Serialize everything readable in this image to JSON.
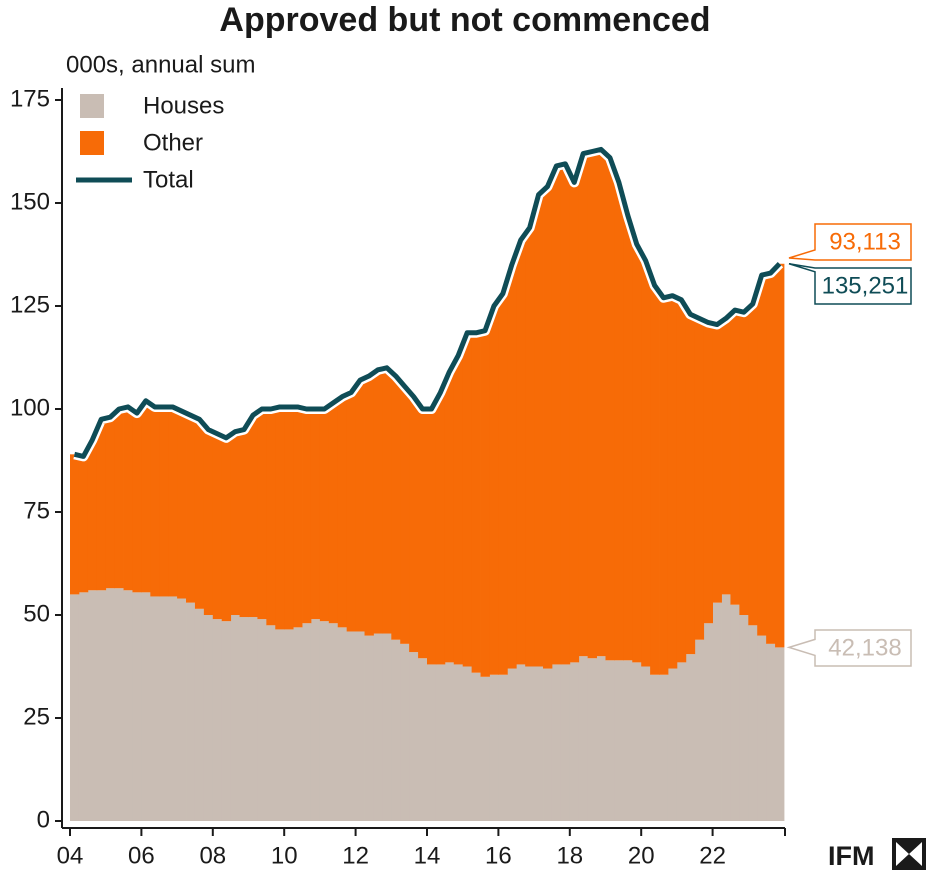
{
  "chart_data": {
    "type": "stacked-step-area",
    "title": "Approved but not commenced",
    "subtitle": "000s, annual sum",
    "logo": "IFM",
    "x": [
      2004,
      2004.25,
      2004.5,
      2004.75,
      2005,
      2005.25,
      2005.5,
      2005.75,
      2006,
      2006.25,
      2006.5,
      2006.75,
      2007,
      2007.25,
      2007.5,
      2007.75,
      2008,
      2008.25,
      2008.5,
      2008.75,
      2009,
      2009.25,
      2009.5,
      2009.75,
      2010,
      2010.25,
      2010.5,
      2010.75,
      2011,
      2011.25,
      2011.5,
      2011.75,
      2012,
      2012.25,
      2012.5,
      2012.75,
      2013,
      2013.25,
      2013.5,
      2013.75,
      2014,
      2014.25,
      2014.5,
      2014.75,
      2015,
      2015.25,
      2015.5,
      2015.75,
      2016,
      2016.25,
      2016.5,
      2016.75,
      2017,
      2017.25,
      2017.5,
      2017.75,
      2018,
      2018.25,
      2018.5,
      2018.75,
      2019,
      2019.25,
      2019.5,
      2019.75,
      2020,
      2020.25,
      2020.5,
      2020.75,
      2021,
      2021.25,
      2021.5,
      2021.75,
      2022,
      2022.25,
      2022.5,
      2022.75,
      2023,
      2023.25,
      2023.5,
      2023.75
    ],
    "series": [
      {
        "name": "Houses",
        "color": "#c9bdb4",
        "stack": true,
        "values": [
          55,
          55.5,
          56,
          56,
          56.5,
          56.5,
          56,
          55.5,
          55.5,
          54.5,
          54.5,
          54.5,
          54,
          53,
          51.5,
          50,
          49,
          48.5,
          50,
          49.5,
          49.5,
          49,
          47.5,
          46.5,
          46.5,
          47,
          48,
          49,
          48.5,
          48,
          47,
          46,
          46,
          45,
          45.5,
          45.5,
          44,
          43,
          41,
          39.5,
          38,
          38,
          38.5,
          38,
          37.5,
          36,
          35,
          35.5,
          35.5,
          37,
          38,
          37.5,
          37.5,
          37,
          38,
          38,
          38.5,
          40,
          39.5,
          40,
          39,
          39,
          39,
          38.5,
          37.5,
          35.5,
          35.5,
          37,
          38.5,
          40.5,
          44,
          48,
          53,
          55,
          52.5,
          50,
          47.5,
          45,
          43,
          42.138
        ],
        "value_labels": [
          null,
          null,
          null,
          null,
          null,
          null,
          null,
          null,
          null,
          null,
          null,
          null,
          null,
          null,
          null,
          null,
          null,
          null,
          null,
          null,
          null,
          null,
          null,
          null,
          null,
          null,
          null,
          null,
          null,
          null,
          null,
          null,
          null,
          null,
          null,
          null,
          null,
          null,
          null,
          null,
          null,
          null,
          null,
          null,
          null,
          null,
          null,
          null,
          null,
          null,
          null,
          null,
          null,
          null,
          null,
          null,
          null,
          null,
          null,
          null,
          null,
          null,
          null,
          null,
          null,
          null,
          null,
          null,
          null,
          null,
          null,
          null,
          null,
          null,
          null,
          null,
          null,
          null,
          null,
          "42,138"
        ]
      },
      {
        "name": "Other",
        "color": "#f76b07",
        "stack": true,
        "values": [
          34,
          33,
          36.5,
          41.5,
          41.5,
          43.5,
          44.5,
          43.5,
          46.5,
          46,
          46,
          46,
          45.5,
          45.5,
          46,
          45,
          45,
          44.5,
          44.5,
          45.5,
          49,
          51,
          52.5,
          54,
          54,
          53.5,
          52,
          51,
          51.5,
          53.5,
          56,
          58,
          61,
          63,
          64,
          64.5,
          64,
          62.5,
          62,
          60.5,
          62,
          66,
          70.5,
          75,
          81,
          82.5,
          84,
          89.5,
          92.5,
          98,
          103,
          106.5,
          114.5,
          117,
          121,
          121.5,
          116.5,
          122,
          123,
          123,
          122,
          116,
          108,
          101.5,
          98.5,
          94.5,
          91.5,
          90.5,
          88,
          82.5,
          78,
          73,
          67.5,
          67,
          71.5,
          73.5,
          78,
          87.5,
          90,
          93.113
        ],
        "value_labels": [
          null,
          null,
          null,
          null,
          null,
          null,
          null,
          null,
          null,
          null,
          null,
          null,
          null,
          null,
          null,
          null,
          null,
          null,
          null,
          null,
          null,
          null,
          null,
          null,
          null,
          null,
          null,
          null,
          null,
          null,
          null,
          null,
          null,
          null,
          null,
          null,
          null,
          null,
          null,
          null,
          null,
          null,
          null,
          null,
          null,
          null,
          null,
          null,
          null,
          null,
          null,
          null,
          null,
          null,
          null,
          null,
          null,
          null,
          null,
          null,
          null,
          null,
          null,
          null,
          null,
          null,
          null,
          null,
          null,
          null,
          null,
          null,
          null,
          null,
          null,
          null,
          null,
          null,
          null,
          "93,113"
        ]
      },
      {
        "name": "Total",
        "color": "#0f4c56",
        "stack": false,
        "values": [
          89,
          88.5,
          92.5,
          97.5,
          98,
          100,
          100.5,
          99,
          102,
          100.5,
          100.5,
          100.5,
          99.5,
          98.5,
          97.5,
          95,
          94,
          93,
          94.5,
          95,
          98.5,
          100,
          100,
          100.5,
          100.5,
          100.5,
          100,
          100,
          100,
          101.5,
          103,
          104,
          107,
          108,
          109.5,
          110,
          108,
          105.5,
          103,
          100,
          100,
          104,
          109,
          113,
          118.5,
          118.5,
          119,
          125,
          128,
          135,
          141,
          144,
          152,
          154,
          159,
          159.5,
          155,
          162,
          162.5,
          163,
          161,
          155,
          147,
          140,
          136,
          130,
          127,
          127.5,
          126.5,
          123,
          122,
          121,
          120.5,
          122,
          124,
          123.5,
          125.5,
          132.5,
          133,
          135.251
        ],
        "value_labels": [
          null,
          null,
          null,
          null,
          null,
          null,
          null,
          null,
          null,
          null,
          null,
          null,
          null,
          null,
          null,
          null,
          null,
          null,
          null,
          null,
          null,
          null,
          null,
          null,
          null,
          null,
          null,
          null,
          null,
          null,
          null,
          null,
          null,
          null,
          null,
          null,
          null,
          null,
          null,
          null,
          null,
          null,
          null,
          null,
          null,
          null,
          null,
          null,
          null,
          null,
          null,
          null,
          null,
          null,
          null,
          null,
          null,
          null,
          null,
          null,
          null,
          null,
          null,
          null,
          null,
          null,
          null,
          null,
          null,
          null,
          null,
          null,
          null,
          null,
          null,
          null,
          null,
          null,
          null,
          "135,251"
        ]
      }
    ],
    "xlim": [
      2004,
      2024
    ],
    "xticks": [
      {
        "value": 2004,
        "label": "04"
      },
      {
        "value": 2006,
        "label": "06"
      },
      {
        "value": 2008,
        "label": "08"
      },
      {
        "value": 2010,
        "label": "10"
      },
      {
        "value": 2012,
        "label": "12"
      },
      {
        "value": 2014,
        "label": "14"
      },
      {
        "value": 2016,
        "label": "16"
      },
      {
        "value": 2018,
        "label": "18"
      },
      {
        "value": 2020,
        "label": "20"
      },
      {
        "value": 2022,
        "label": "22"
      }
    ],
    "ylim": [
      0,
      175
    ],
    "yticks": [
      0,
      25,
      50,
      75,
      100,
      125,
      150,
      175
    ],
    "legend": "top-left"
  }
}
